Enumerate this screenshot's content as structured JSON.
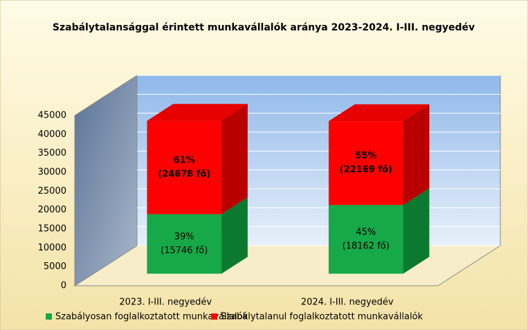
{
  "chart_data": {
    "type": "bar3d_stacked",
    "title": "Szabálytalansággal érintett munkavállalók aránya 2023-2024. I-III. negyedév",
    "categories": [
      "2023. I-III. negyedév",
      "2024. I-III. negyedév"
    ],
    "series": [
      {
        "name": "Szabályosan foglalkoztatott munkavállalók",
        "color": "#17a847",
        "values": [
          15746,
          18162
        ],
        "percent_labels": [
          "39%",
          "45%"
        ],
        "value_labels": [
          "(15746 fő)",
          "(18162 fő)"
        ]
      },
      {
        "name": "Szabálytalanul foglalkoztatott munkavállalók",
        "color": "#ff0000",
        "values": [
          24678,
          22169
        ],
        "percent_labels": [
          "61%",
          "55%"
        ],
        "value_labels": [
          "(24678 fő)",
          "(22169 fő)"
        ]
      }
    ],
    "ylim": [
      0,
      45000
    ],
    "yticks": [
      0,
      5000,
      10000,
      15000,
      20000,
      25000,
      30000,
      35000,
      40000,
      45000
    ],
    "grid": true
  }
}
